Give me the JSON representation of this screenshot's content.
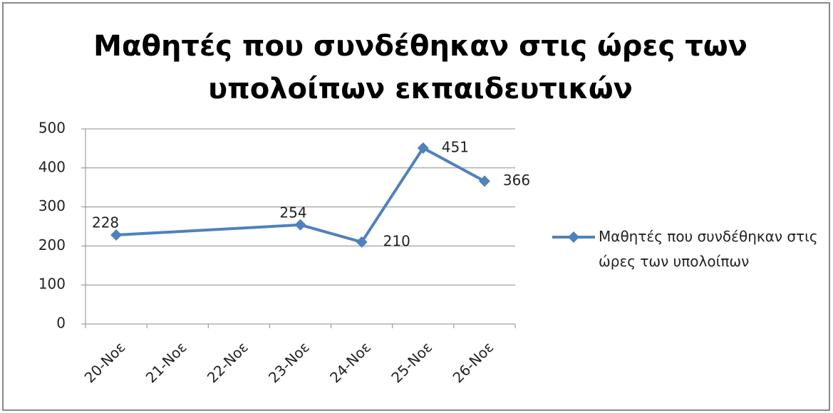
{
  "chart_data": {
    "type": "line",
    "title": "Μαθητές που συνδέθηκαν στις ώρες των υπολοίπων εκπαιδευτικών",
    "x": [
      "20-Νοε",
      "23-Νοε",
      "24-Νοε",
      "25-Νοε",
      "26-Νοε"
    ],
    "xticks": [
      "20-Νοε",
      "21-Νοε",
      "22-Νοε",
      "23-Νοε",
      "24-Νοε",
      "25-Νοε",
      "26-Νοε"
    ],
    "series": [
      {
        "name": "Μαθητές που συνδέθηκαν στις ώρες των υπολοίπων",
        "color": "#4f81bd",
        "values": [
          228,
          254,
          210,
          451,
          366
        ]
      }
    ],
    "ylim": [
      0,
      500
    ],
    "yticks": [
      0,
      100,
      200,
      300,
      400,
      500
    ],
    "grid": true,
    "legend": "right"
  }
}
